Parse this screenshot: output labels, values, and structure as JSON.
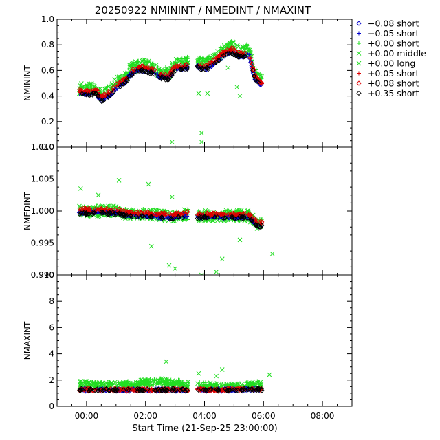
{
  "title": "20250922 NMININT / NMEDINT / NMAXINT",
  "xlabel": "Start Time (21-Sep-25 23:00:00)",
  "x_ticks": [
    "00:00",
    "02:00",
    "04:00",
    "06:00",
    "08:00"
  ],
  "legend": [
    {
      "symbol": "diamond",
      "label": "−0.08 short",
      "color": "#0000cc"
    },
    {
      "symbol": "plus",
      "label": "−0.05 short",
      "color": "#0000cc"
    },
    {
      "symbol": "plus",
      "label": "+0.00 short",
      "color": "#22dd22"
    },
    {
      "symbol": "cross",
      "label": "+0.00 middle",
      "color": "#22dd22"
    },
    {
      "symbol": "cross",
      "label": "+0.00 long",
      "color": "#22dd22"
    },
    {
      "symbol": "plus",
      "label": "+0.05 short",
      "color": "#dd0000"
    },
    {
      "symbol": "diamond",
      "label": "+0.08 short",
      "color": "#dd0000"
    },
    {
      "symbol": "diamond",
      "label": "+0.35 short",
      "color": "#000000"
    }
  ],
  "chart_data": [
    {
      "type": "scatter",
      "ylabel": "NMININT",
      "xlim_hours": [
        -1.0,
        9.0
      ],
      "ylim": [
        0.0,
        1.0
      ],
      "y_ticks": [
        "0.0",
        "0.2",
        "0.4",
        "0.6",
        "0.8",
        "1.0"
      ],
      "y_tick_values": [
        0.0,
        0.2,
        0.4,
        0.6,
        0.8,
        1.0
      ],
      "base_trend": [
        [
          -0.2,
          0.43
        ],
        [
          0.0,
          0.42
        ],
        [
          0.3,
          0.44
        ],
        [
          0.5,
          0.38
        ],
        [
          0.8,
          0.42
        ],
        [
          1.0,
          0.47
        ],
        [
          1.3,
          0.52
        ],
        [
          1.5,
          0.58
        ],
        [
          1.8,
          0.62
        ],
        [
          2.2,
          0.6
        ],
        [
          2.5,
          0.56
        ],
        [
          2.8,
          0.55
        ],
        [
          3.0,
          0.62
        ],
        [
          3.3,
          0.63
        ],
        [
          3.7,
          0.65
        ],
        [
          4.0,
          0.62
        ],
        [
          4.3,
          0.66
        ],
        [
          4.6,
          0.72
        ],
        [
          4.9,
          0.76
        ],
        [
          5.2,
          0.72
        ],
        [
          5.5,
          0.74
        ],
        [
          5.7,
          0.55
        ],
        [
          5.9,
          0.5
        ]
      ],
      "outliers": [
        [
          2.9,
          0.04
        ],
        [
          3.9,
          0.04
        ],
        [
          3.9,
          0.11
        ],
        [
          3.8,
          0.42
        ],
        [
          4.1,
          0.42
        ],
        [
          4.8,
          0.62
        ],
        [
          5.0,
          0.82
        ],
        [
          5.1,
          0.47
        ],
        [
          5.2,
          0.4
        ]
      ]
    },
    {
      "type": "scatter",
      "ylabel": "NMEDINT",
      "xlim_hours": [
        -1.0,
        9.0
      ],
      "ylim": [
        0.99,
        1.01
      ],
      "y_ticks": [
        "0.990",
        "0.995",
        "1.000",
        "1.005",
        "1.010"
      ],
      "y_tick_values": [
        0.99,
        0.995,
        1.0,
        1.005,
        1.01
      ],
      "base_trend": [
        [
          -0.2,
          1.0
        ],
        [
          0.5,
          1.0
        ],
        [
          1.0,
          1.0
        ],
        [
          1.5,
          0.9995
        ],
        [
          2.0,
          0.9995
        ],
        [
          2.5,
          0.9993
        ],
        [
          3.0,
          0.9992
        ],
        [
          3.4,
          0.9995
        ],
        [
          3.8,
          0.9993
        ],
        [
          4.3,
          0.9993
        ],
        [
          4.8,
          0.9993
        ],
        [
          5.5,
          0.9993
        ],
        [
          5.8,
          0.998
        ]
      ],
      "outliers": [
        [
          -0.2,
          1.0035
        ],
        [
          0.4,
          1.0025
        ],
        [
          1.1,
          1.0048
        ],
        [
          2.1,
          1.0042
        ],
        [
          2.9,
          1.0022
        ],
        [
          3.0,
          0.991
        ],
        [
          2.8,
          0.9915
        ],
        [
          3.9,
          0.99
        ],
        [
          4.4,
          0.9905
        ],
        [
          4.6,
          0.9925
        ],
        [
          6.3,
          0.9933
        ],
        [
          5.2,
          0.9955
        ],
        [
          2.2,
          0.9945
        ]
      ]
    },
    {
      "type": "scatter",
      "ylabel": "NMAXINT",
      "xlim_hours": [
        -1.0,
        9.0
      ],
      "ylim": [
        0,
        10
      ],
      "y_ticks": [
        "0",
        "2",
        "4",
        "6",
        "8",
        "10"
      ],
      "y_tick_values": [
        0,
        2,
        4,
        6,
        8,
        10
      ],
      "base_trend": [
        [
          -0.2,
          1.25
        ],
        [
          1.0,
          1.25
        ],
        [
          2.0,
          1.25
        ],
        [
          3.0,
          1.25
        ],
        [
          3.4,
          1.25
        ],
        [
          4.0,
          1.25
        ],
        [
          5.0,
          1.25
        ],
        [
          5.9,
          1.3
        ]
      ],
      "green_trend": [
        [
          -0.2,
          1.7
        ],
        [
          0.5,
          1.6
        ],
        [
          1.0,
          1.6
        ],
        [
          1.5,
          1.7
        ],
        [
          2.0,
          1.8
        ],
        [
          2.5,
          1.9
        ],
        [
          3.0,
          1.8
        ],
        [
          3.4,
          1.7
        ],
        [
          4.0,
          1.6
        ],
        [
          4.5,
          1.5
        ],
        [
          5.0,
          1.5
        ],
        [
          5.5,
          1.6
        ],
        [
          5.9,
          1.7
        ]
      ],
      "outliers": [
        [
          2.7,
          3.4
        ],
        [
          4.4,
          2.3
        ],
        [
          4.6,
          2.8
        ],
        [
          6.2,
          2.4
        ],
        [
          3.8,
          2.5
        ]
      ]
    }
  ]
}
